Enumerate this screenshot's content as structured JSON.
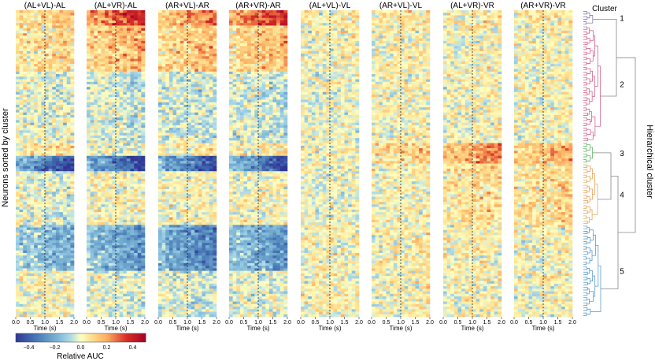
{
  "chart_data": {
    "type": "heatmap",
    "ylabel": "Neurons sorted by cluster",
    "panels": [
      {
        "title": "(AL+VL)-AL"
      },
      {
        "title": "(AL+VR)-AL"
      },
      {
        "title": "(AR+VL)-AR"
      },
      {
        "title": "(AR+VR)-AR"
      },
      {
        "title": "(AL+VL)-VL"
      },
      {
        "title": "(AR+VL)-VL"
      },
      {
        "title": "(AL+VR)-VR"
      },
      {
        "title": "(AR+VR)-VR"
      }
    ],
    "x_axis": {
      "label": "Time (s)",
      "range": [
        0.0,
        2.0
      ],
      "ticks": [
        "0.0",
        "0.5",
        "1.0",
        "1.5",
        "2.0"
      ],
      "stimulus_line": 1.0
    },
    "colorbar": {
      "label": "Relative AUC",
      "range": [
        -0.5,
        0.5
      ],
      "ticks": [
        "-0.4",
        "-0.2",
        "0.0",
        "0.2",
        "0.4"
      ],
      "colormap": "RdYlBu_r"
    },
    "dendrogram": {
      "header": "Cluster",
      "side_label": "Hierarchical cluster",
      "clusters": [
        {
          "id": "1",
          "color": "#7b68a6",
          "rows": [
            0.0,
            0.05
          ]
        },
        {
          "id": "2",
          "color": "#d0507a",
          "rows": [
            0.05,
            0.43
          ]
        },
        {
          "id": "3",
          "color": "#4caf50",
          "rows": [
            0.43,
            0.5
          ]
        },
        {
          "id": "4",
          "color": "#e39a4a",
          "rows": [
            0.5,
            0.7
          ]
        },
        {
          "id": "5",
          "color": "#4a8fc4",
          "rows": [
            0.7,
            1.0
          ]
        }
      ]
    },
    "clusters_in_panels": {
      "note_free": true,
      "cluster_means_per_panel": [
        [
          0.1,
          0.08,
          -0.02,
          0.05,
          -0.02,
          -0.15,
          0.02
        ],
        [
          0.3,
          0.15,
          -0.05,
          0.0,
          0.02,
          -0.2,
          -0.02
        ],
        [
          0.2,
          0.12,
          -0.05,
          0.05,
          0.02,
          -0.25,
          -0.03
        ],
        [
          0.3,
          0.12,
          -0.05,
          0.05,
          0.02,
          -0.2,
          -0.02
        ],
        [
          0.03,
          0.02,
          0.0,
          0.02,
          0.0,
          0.03,
          0.02
        ],
        [
          0.05,
          0.03,
          0.02,
          0.1,
          0.02,
          0.03,
          0.02
        ],
        [
          0.05,
          0.02,
          0.02,
          0.2,
          0.08,
          0.02,
          0.02
        ],
        [
          0.05,
          0.02,
          0.02,
          0.15,
          0.08,
          0.02,
          0.02
        ]
      ]
    }
  }
}
